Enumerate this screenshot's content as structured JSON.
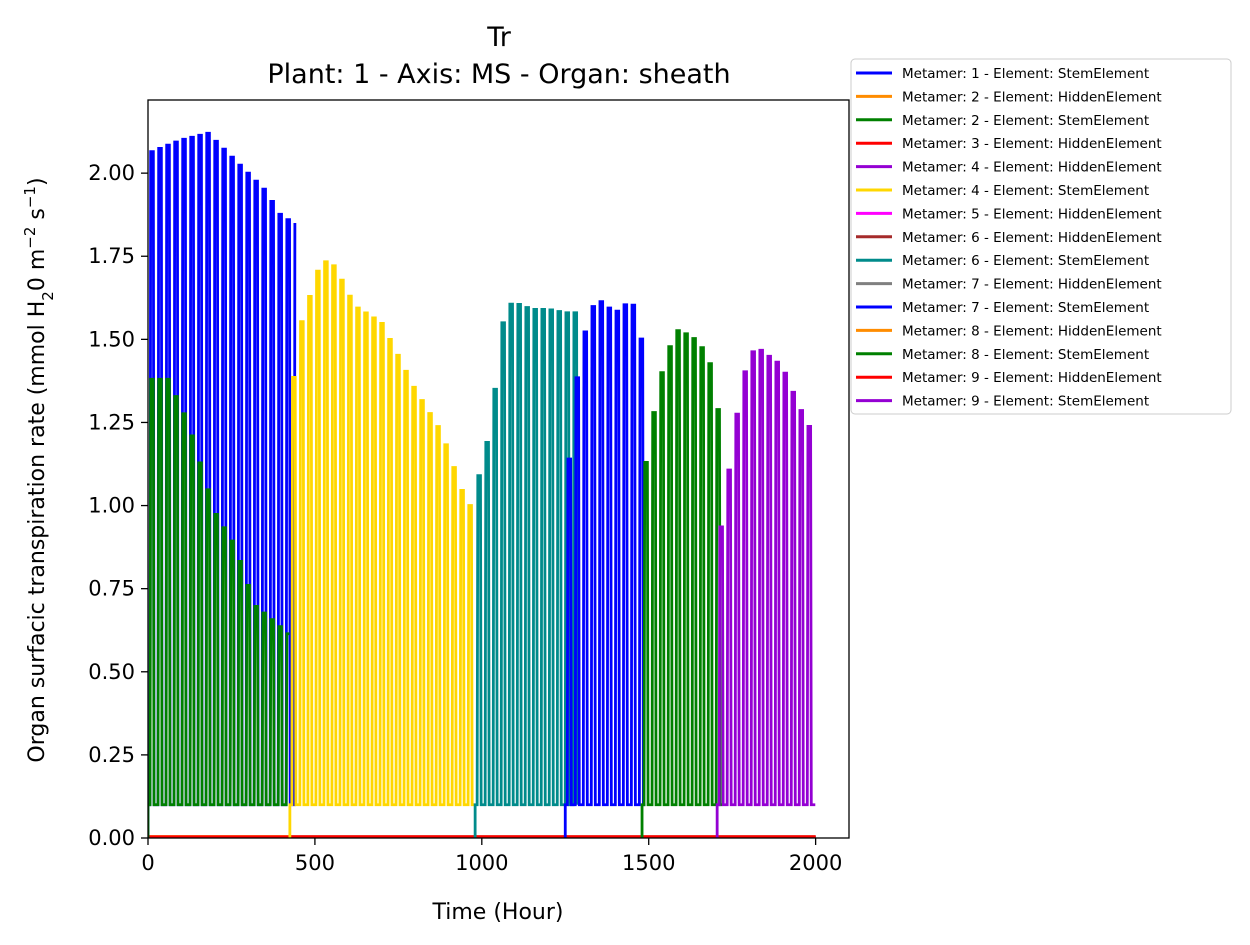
{
  "chart_data": {
    "type": "line",
    "title": "Tr",
    "subtitle": "Plant: 1 - Axis: MS - Organ: sheath",
    "xlabel": "Time (Hour)",
    "ylabel_parts": [
      "Organ surfacic transpiration rate (mmol H",
      "2",
      "0 m",
      "−2",
      " s",
      "−1",
      ")"
    ],
    "xlim": [
      0,
      2100
    ],
    "ylim": [
      0,
      2.22
    ],
    "xticks": [
      0,
      500,
      1000,
      1500,
      2000
    ],
    "xtick_labels": [
      "0",
      "500",
      "1000",
      "1500",
      "2000"
    ],
    "yticks": [
      0,
      0.25,
      0.5,
      0.75,
      1.0,
      1.25,
      1.5,
      1.75,
      2.0
    ],
    "ytick_labels": [
      "0.00",
      "0.25",
      "0.50",
      "0.75",
      "1.00",
      "1.25",
      "1.50",
      "1.75",
      "2.00"
    ],
    "grid": false,
    "legend_position": "outside-top-right",
    "series": [
      {
        "name": "Metamer: 1 - Element: StemElement",
        "color": "#0000ff",
        "type": "oscillation",
        "start": 0,
        "end": 440,
        "peak_points": [
          [
            0,
            2.06
          ],
          [
            100,
            2.1
          ],
          [
            180,
            2.12
          ],
          [
            250,
            2.05
          ],
          [
            300,
            2.0
          ],
          [
            350,
            1.95
          ],
          [
            400,
            1.87
          ],
          [
            440,
            1.85
          ]
        ],
        "min": 0.1
      },
      {
        "name": "Metamer: 2 - Element: HiddenElement",
        "color": "#ff8c00",
        "type": "flat",
        "start": 0,
        "end": 2000,
        "value": 0.005
      },
      {
        "name": "Metamer: 2 - Element: StemElement",
        "color": "#008000",
        "type": "oscillation",
        "start": 0,
        "end": 425,
        "peak_points": [
          [
            0,
            1.38
          ],
          [
            60,
            1.38
          ],
          [
            120,
            1.25
          ],
          [
            200,
            0.98
          ],
          [
            260,
            0.88
          ],
          [
            320,
            0.7
          ],
          [
            380,
            0.65
          ],
          [
            425,
            0.61
          ]
        ],
        "min": 0.1
      },
      {
        "name": "Metamer: 3 - Element: HiddenElement",
        "color": "#ff0000",
        "type": "flat",
        "start": 0,
        "end": 2000,
        "value": 0.003
      },
      {
        "name": "Metamer: 4 - Element: HiddenElement",
        "color": "#9400d3",
        "type": "flat",
        "start": 420,
        "end": 2000,
        "value": 0.004
      },
      {
        "name": "Metamer: 4 - Element: StemElement",
        "color": "#ffd700",
        "type": "oscillation",
        "start": 425,
        "end": 980,
        "peak_points": [
          [
            425,
            1.3
          ],
          [
            460,
            1.55
          ],
          [
            520,
            1.74
          ],
          [
            560,
            1.72
          ],
          [
            620,
            1.6
          ],
          [
            700,
            1.55
          ],
          [
            800,
            1.35
          ],
          [
            880,
            1.22
          ],
          [
            950,
            1.02
          ],
          [
            980,
            0.98
          ]
        ],
        "min": 0.1
      },
      {
        "name": "Metamer: 5 - Element: HiddenElement",
        "color": "#ff00ff",
        "type": "flat",
        "start": 0,
        "end": 2000,
        "value": 0.002
      },
      {
        "name": "Metamer: 6 - Element: HiddenElement",
        "color": "#a52a2a",
        "type": "flat",
        "start": 0,
        "end": 2000,
        "value": 0.002
      },
      {
        "name": "Metamer: 6 - Element: StemElement",
        "color": "#008b8b",
        "type": "oscillation",
        "start": 980,
        "end": 1290,
        "peak_points": [
          [
            980,
            1.05
          ],
          [
            1010,
            1.15
          ],
          [
            1040,
            1.35
          ],
          [
            1070,
            1.6
          ],
          [
            1100,
            1.61
          ],
          [
            1150,
            1.59
          ],
          [
            1200,
            1.59
          ],
          [
            1250,
            1.58
          ],
          [
            1290,
            1.58
          ]
        ],
        "min": 0.1
      },
      {
        "name": "Metamer: 7 - Element: HiddenElement",
        "color": "#808080",
        "type": "flat",
        "start": 0,
        "end": 2000,
        "value": 0.002
      },
      {
        "name": "Metamer: 7 - Element: StemElement",
        "color": "#0000ff",
        "type": "oscillation",
        "start": 1250,
        "end": 1490,
        "peak_points": [
          [
            1250,
            1.0
          ],
          [
            1280,
            1.35
          ],
          [
            1320,
            1.58
          ],
          [
            1350,
            1.62
          ],
          [
            1400,
            1.58
          ],
          [
            1450,
            1.62
          ],
          [
            1490,
            1.45
          ]
        ],
        "min": 0.1
      },
      {
        "name": "Metamer: 8 - Element: HiddenElement",
        "color": "#ff8c00",
        "type": "flat",
        "start": 0,
        "end": 2000,
        "value": 0.003
      },
      {
        "name": "Metamer: 8 - Element: StemElement",
        "color": "#008000",
        "type": "oscillation",
        "start": 1480,
        "end": 1720,
        "peak_points": [
          [
            1480,
            1.05
          ],
          [
            1510,
            1.25
          ],
          [
            1550,
            1.45
          ],
          [
            1590,
            1.53
          ],
          [
            1640,
            1.5
          ],
          [
            1680,
            1.45
          ],
          [
            1720,
            1.22
          ]
        ],
        "min": 0.1
      },
      {
        "name": "Metamer: 9 - Element: HiddenElement",
        "color": "#ff0000",
        "type": "flat",
        "start": 0,
        "end": 2000,
        "value": 0.004
      },
      {
        "name": "Metamer: 9 - Element: StemElement",
        "color": "#9400d3",
        "type": "oscillation",
        "start": 1705,
        "end": 2000,
        "peak_points": [
          [
            1705,
            0.85
          ],
          [
            1740,
            1.1
          ],
          [
            1780,
            1.38
          ],
          [
            1820,
            1.48
          ],
          [
            1860,
            1.45
          ],
          [
            1900,
            1.42
          ],
          [
            1950,
            1.3
          ],
          [
            2000,
            1.2
          ]
        ],
        "min": 0.1
      }
    ]
  }
}
